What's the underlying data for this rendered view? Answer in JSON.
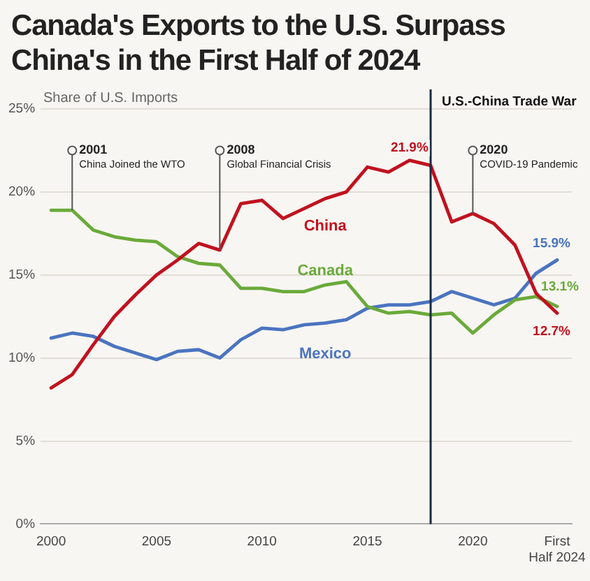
{
  "chart_data": {
    "type": "line",
    "title": "Canada's Exports to the U.S. Surpass China's in the First Half of 2024",
    "ylabel": "Share of U.S. Imports",
    "x": [
      2000,
      2001,
      2002,
      2003,
      2004,
      2005,
      2006,
      2007,
      2008,
      2009,
      2010,
      2011,
      2012,
      2013,
      2014,
      2015,
      2016,
      2017,
      2018,
      2019,
      2020,
      2021,
      2022,
      2023,
      2024
    ],
    "series": [
      {
        "name": "China",
        "color": "#c0121f",
        "values": [
          8.2,
          9.0,
          10.8,
          12.5,
          13.8,
          15.0,
          15.9,
          16.9,
          16.5,
          19.3,
          19.5,
          18.4,
          19.0,
          19.6,
          20.0,
          21.5,
          21.2,
          21.9,
          21.6,
          18.2,
          18.7,
          18.1,
          16.8,
          13.9,
          12.7
        ],
        "value_labels": [
          null,
          null,
          null,
          null,
          null,
          null,
          null,
          null,
          null,
          null,
          null,
          null,
          null,
          null,
          null,
          null,
          null,
          "21.9%",
          null,
          null,
          null,
          null,
          null,
          null,
          "12.7%"
        ]
      },
      {
        "name": "Canada",
        "color": "#6aaa3a",
        "values": [
          18.9,
          18.9,
          17.7,
          17.3,
          17.1,
          17.0,
          16.1,
          15.7,
          15.6,
          14.2,
          14.2,
          14.0,
          14.0,
          14.4,
          14.6,
          13.1,
          12.7,
          12.8,
          12.6,
          12.7,
          11.5,
          12.6,
          13.5,
          13.7,
          13.1
        ],
        "value_labels": [
          null,
          null,
          null,
          null,
          null,
          null,
          null,
          null,
          null,
          null,
          null,
          null,
          null,
          null,
          null,
          null,
          null,
          null,
          null,
          null,
          null,
          null,
          null,
          null,
          "13.1%"
        ]
      },
      {
        "name": "Mexico",
        "color": "#4a74c0",
        "values": [
          11.2,
          11.5,
          11.3,
          10.7,
          10.3,
          9.9,
          10.4,
          10.5,
          10.0,
          11.1,
          11.8,
          11.7,
          12.0,
          12.1,
          12.3,
          13.0,
          13.2,
          13.2,
          13.4,
          14.0,
          13.6,
          13.2,
          13.6,
          15.1,
          15.9
        ],
        "value_labels": [
          null,
          null,
          null,
          null,
          null,
          null,
          null,
          null,
          null,
          null,
          null,
          null,
          null,
          null,
          null,
          null,
          null,
          null,
          null,
          null,
          null,
          null,
          null,
          null,
          "15.9%"
        ]
      }
    ],
    "xlim": [
      1999.5,
      2024.7
    ],
    "xticks": [
      2000,
      2005,
      2010,
      2015,
      2020,
      {
        "value": 2024,
        "label": "First Half 2024"
      }
    ],
    "ylim": [
      0,
      25
    ],
    "yticks": [
      {
        "value": 0,
        "label": "0%"
      },
      {
        "value": 5,
        "label": "5%"
      },
      {
        "value": 10,
        "label": "10%"
      },
      {
        "value": 15,
        "label": "15%"
      },
      {
        "value": 20,
        "label": "20%"
      },
      {
        "value": 25,
        "label": "25%"
      }
    ],
    "ref_lines": [
      {
        "axis": "x",
        "value": 2018,
        "label": "U.S.-China Trade War",
        "color": "#1b2a44"
      }
    ],
    "annotations": [
      {
        "text": "2001\nChina Joined the WTO",
        "x": 2001,
        "y": 18.9
      },
      {
        "text": "2008\nGlobal Financial Crisis",
        "x": 2008,
        "y": 16.5
      },
      {
        "text": "2020\nCOVID-19 Pandemic",
        "x": 2020,
        "y": 18.7
      }
    ],
    "grid": "y",
    "legend": false,
    "marker": "none",
    "line_style": "solid"
  }
}
